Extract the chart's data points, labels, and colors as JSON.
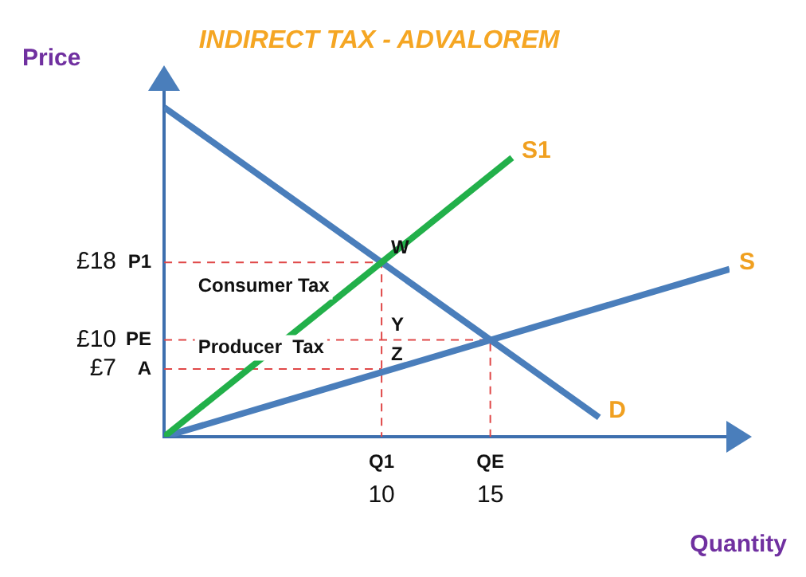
{
  "chart_data": {
    "type": "line",
    "title": "INDIRECT TAX - ADVALOREM",
    "xlabel": "Quantity",
    "ylabel": "Price",
    "xlim": [
      0,
      26
    ],
    "ylim": [
      0,
      36
    ],
    "xticks": [
      10,
      15
    ],
    "yticks": [
      {
        "value": 7,
        "label": "£7"
      },
      {
        "value": 10,
        "label": "£10"
      },
      {
        "value": 18,
        "label": "£18"
      }
    ],
    "grid": false,
    "legend": false,
    "marker": "none",
    "series": [
      {
        "name": "S1",
        "color": "#22b04a",
        "x": [
          0,
          16
        ],
        "values": [
          0,
          28.8
        ]
      },
      {
        "name": "S",
        "color": "#4a7ebb",
        "x": [
          0,
          26
        ],
        "values": [
          0,
          17.3
        ]
      },
      {
        "name": "D",
        "color": "#4a7ebb",
        "x": [
          0,
          20
        ],
        "values": [
          34,
          2
        ]
      },
      {
        "color": "#e04848",
        "line_style": "dashed",
        "x": [
          0,
          10,
          10
        ],
        "values": [
          18,
          18,
          0
        ]
      },
      {
        "color": "#e04848",
        "line_style": "dashed",
        "x": [
          0,
          15,
          15
        ],
        "values": [
          10,
          10,
          0
        ]
      },
      {
        "color": "#e04848",
        "line_style": "dashed",
        "x": [
          0,
          10
        ],
        "values": [
          7,
          7
        ]
      }
    ],
    "annotations": [
      {
        "text": "P1",
        "x": 0,
        "y": 18
      },
      {
        "text": "PE",
        "x": 0,
        "y": 10
      },
      {
        "text": "A",
        "x": 0,
        "y": 7
      },
      {
        "text": "Q1",
        "x": 10,
        "y": 0
      },
      {
        "text": "QE",
        "x": 15,
        "y": 0
      },
      {
        "text": "W",
        "x": 10,
        "y": 18
      },
      {
        "text": "Y",
        "x": 10,
        "y": 10
      },
      {
        "text": "Z",
        "x": 10,
        "y": 7
      },
      "Consumer Tax",
      "Producer  Tax"
    ]
  }
}
